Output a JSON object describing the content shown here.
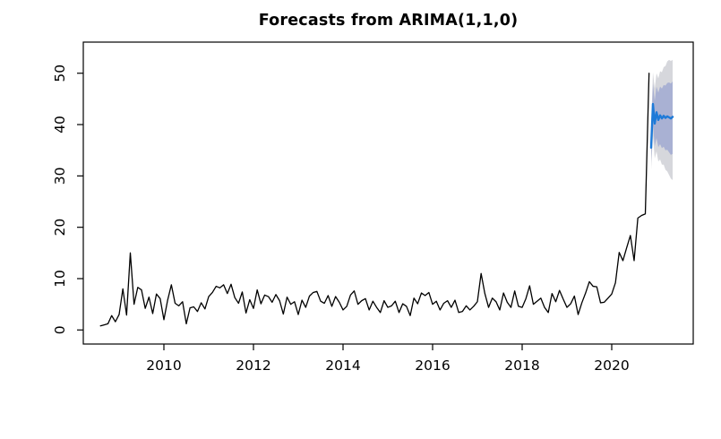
{
  "figure": {
    "title": "Forecasts from ARIMA(1,1,0)"
  },
  "chart_data": {
    "type": "line",
    "title": "Forecasts from ARIMA(1,1,0)",
    "xlabel": "",
    "ylabel": "",
    "grid": false,
    "legend": "none",
    "xlim": [
      2008.2,
      2021.82
    ],
    "ylim": [
      -2.74,
      56.06
    ],
    "x_ticks": [
      "2010",
      "2012",
      "2014",
      "2016",
      "2018",
      "2020"
    ],
    "x_tick_values": [
      2010,
      2012,
      2014,
      2016,
      2018,
      2020
    ],
    "y_ticks": [
      "0",
      "10",
      "20",
      "30",
      "40",
      "50"
    ],
    "y_tick_values": [
      0,
      10,
      20,
      30,
      40,
      50
    ],
    "colors": {
      "observed_line": "#000000",
      "forecast_line": "#1e7ad8",
      "band_80": "#a9b1d3",
      "band_95": "#d6d7dc",
      "axis": "#000000"
    },
    "observed": {
      "name": "observed-series",
      "frequency": "monthly",
      "x_start": 2008.5833,
      "x_step": 0.0833333,
      "values": [
        0.8,
        1.0,
        1.2,
        2.8,
        1.6,
        3.0,
        8.0,
        2.9,
        15.0,
        5.0,
        8.3,
        7.8,
        4.2,
        6.4,
        3.2,
        7.0,
        6.1,
        2.0,
        5.8,
        8.8,
        5.2,
        4.7,
        5.5,
        1.2,
        4.3,
        4.5,
        3.6,
        5.3,
        4.1,
        6.5,
        7.3,
        8.5,
        8.2,
        8.8,
        7.1,
        8.9,
        6.3,
        5.2,
        7.4,
        3.3,
        5.9,
        4.2,
        7.8,
        5.1,
        6.8,
        6.5,
        5.4,
        6.9,
        5.7,
        3.1,
        6.4,
        5.0,
        5.5,
        3.0,
        5.8,
        4.4,
        6.6,
        7.3,
        7.5,
        5.6,
        5.2,
        6.7,
        4.6,
        6.5,
        5.4,
        3.9,
        4.6,
        6.8,
        7.6,
        5.0,
        5.7,
        6.1,
        3.9,
        5.6,
        4.4,
        3.4,
        5.7,
        4.4,
        4.7,
        5.6,
        3.4,
        5.1,
        4.6,
        2.8,
        6.2,
        5.1,
        7.2,
        6.7,
        7.3,
        5.0,
        5.6,
        3.9,
        5.2,
        5.7,
        4.4,
        5.8,
        3.4,
        3.6,
        4.7,
        3.9,
        4.6,
        5.5,
        11.0,
        7.1,
        4.4,
        6.2,
        5.5,
        3.9,
        7.2,
        5.4,
        4.4,
        7.6,
        4.6,
        4.4,
        6.1,
        8.6,
        5.0,
        5.6,
        6.2,
        4.4,
        3.4,
        7.1,
        5.5,
        7.7,
        6.0,
        4.4,
        5.1,
        6.6,
        3.0,
        5.3,
        7.2,
        9.4,
        8.5,
        8.4,
        5.3,
        5.4,
        6.2,
        7.0,
        9.2,
        15.1,
        13.5,
        16.0,
        18.4,
        13.5,
        21.8,
        22.3,
        22.6,
        50.0
      ]
    },
    "forecast": {
      "name": "forecast-mean",
      "x": [
        2020.88,
        2020.92,
        2020.96,
        2021.0,
        2021.04,
        2021.08,
        2021.12,
        2021.16,
        2021.2,
        2021.24,
        2021.28,
        2021.32,
        2021.36
      ],
      "mean": [
        35.5,
        44.0,
        40.2,
        42.4,
        40.9,
        41.8,
        41.2,
        41.7,
        41.3,
        41.6,
        41.4,
        41.2,
        41.5
      ],
      "intervals": [
        {
          "level": 95,
          "lower": [
            31.3,
            37.8,
            33.4,
            34.8,
            32.8,
            33.2,
            32.2,
            32.2,
            31.2,
            30.9,
            30.2,
            29.5,
            29.2
          ],
          "upper": [
            39.7,
            50.2,
            47.0,
            50.0,
            49.0,
            50.4,
            50.2,
            51.2,
            51.4,
            52.3,
            52.6,
            52.4,
            52.6
          ]
        },
        {
          "level": 80,
          "lower": [
            32.8,
            40.0,
            35.8,
            37.4,
            35.6,
            36.2,
            35.4,
            35.7,
            35.0,
            35.1,
            34.6,
            34.1,
            34.3
          ],
          "upper": [
            38.2,
            48.0,
            44.6,
            47.4,
            46.2,
            47.4,
            47.0,
            47.7,
            47.6,
            48.1,
            48.2,
            48.0,
            48.4
          ]
        }
      ]
    }
  }
}
